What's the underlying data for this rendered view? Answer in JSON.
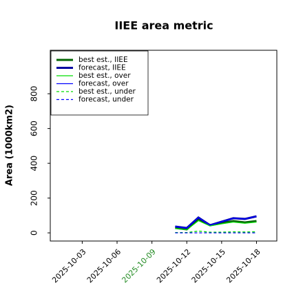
{
  "chart_data": {
    "type": "line",
    "title": "IIEE area metric",
    "ylabel": "Area (1000km2)",
    "x": [
      "2025-10-11",
      "2025-10-12",
      "2025-10-13",
      "2025-10-14",
      "2025-10-15",
      "2025-10-16",
      "2025-10-17",
      "2025-10-18"
    ],
    "series": [
      {
        "name": "best est., IIEE",
        "color": "#006400",
        "width": 3,
        "dash": false,
        "values": [
          28,
          20,
          80,
          44,
          56,
          68,
          60,
          68
        ]
      },
      {
        "name": "forecast, IIEE",
        "color": "#0000a0",
        "width": 3,
        "dash": false,
        "values": [
          36,
          28,
          88,
          44,
          64,
          84,
          80,
          95
        ]
      },
      {
        "name": "best est., over",
        "color": "#00dd00",
        "width": 1.3,
        "dash": false,
        "values": [
          26,
          18,
          70,
          40,
          52,
          62,
          55,
          62
        ]
      },
      {
        "name": "forecast, over",
        "color": "#0000ff",
        "width": 1.3,
        "dash": false,
        "values": [
          36,
          28,
          88,
          44,
          64,
          84,
          80,
          95
        ]
      },
      {
        "name": "best est., under",
        "color": "#00dd00",
        "width": 1.3,
        "dash": true,
        "values": [
          2,
          2,
          10,
          4,
          4,
          6,
          5,
          6
        ]
      },
      {
        "name": "forecast, under",
        "color": "#0000ff",
        "width": 1.3,
        "dash": true,
        "values": [
          0,
          0,
          0,
          0,
          0,
          0,
          0,
          0
        ]
      }
    ],
    "xlim": [
      "2025-09-30T06:00:00Z",
      "2025-10-19T18:00:00Z"
    ],
    "xticks": [
      "2025-10-03",
      "2025-10-06",
      "2025-10-09",
      "2025-10-12",
      "2025-10-15",
      "2025-10-18"
    ],
    "xtick_colors": [
      "#000000",
      "#000000",
      "#228b22",
      "#000000",
      "#000000",
      "#000000"
    ],
    "ylim": [
      -47,
      1050
    ],
    "yticks": [
      0,
      200,
      400,
      600,
      800
    ],
    "legend": "upper left",
    "grid": false
  }
}
